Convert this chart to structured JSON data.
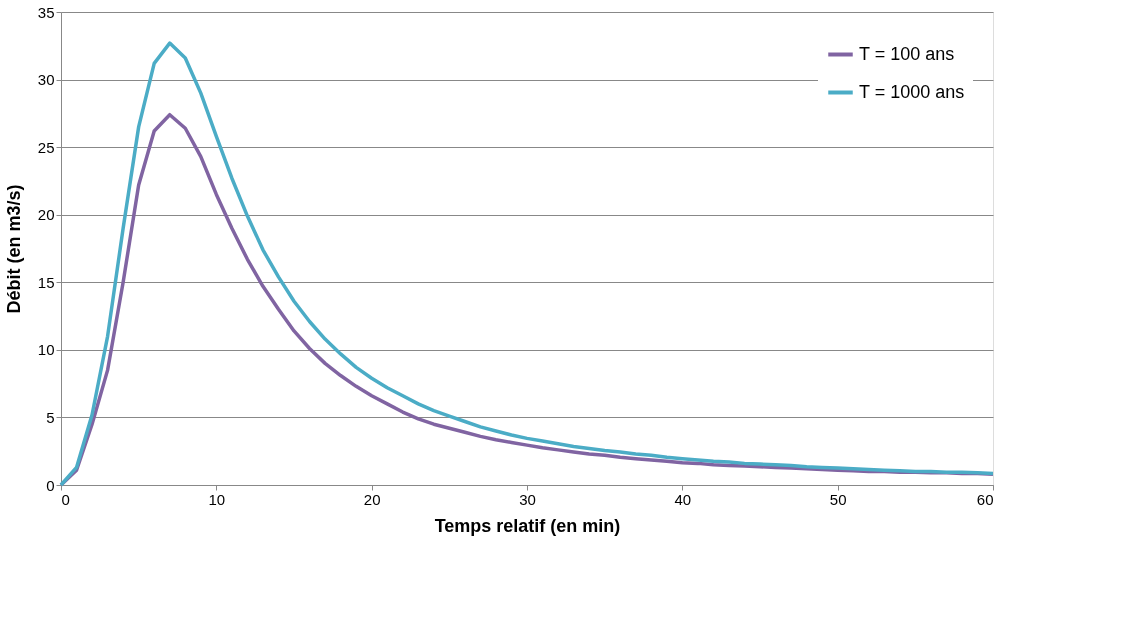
{
  "chart_data": {
    "type": "line",
    "xlabel": "Temps relatif (en min)",
    "ylabel": "Débit (en m3/s)",
    "x": [
      0,
      1,
      2,
      3,
      4,
      5,
      6,
      7,
      8,
      9,
      10,
      11,
      12,
      13,
      14,
      15,
      16,
      17,
      18,
      19,
      20,
      21,
      22,
      23,
      24,
      25,
      26,
      27,
      28,
      29,
      30,
      31,
      32,
      33,
      34,
      35,
      36,
      37,
      38,
      39,
      40,
      41,
      42,
      43,
      44,
      45,
      46,
      47,
      48,
      49,
      50,
      51,
      52,
      53,
      54,
      55,
      56,
      57,
      58,
      59,
      60
    ],
    "series": [
      {
        "name": "T = 100 ans",
        "color": "#8064a2",
        "values": [
          0,
          1.1,
          4.5,
          8.5,
          15,
          22.2,
          26.2,
          27.4,
          26.4,
          24.3,
          21.5,
          19,
          16.7,
          14.7,
          13,
          11.4,
          10.1,
          9,
          8.1,
          7.3,
          6.6,
          6,
          5.4,
          4.9,
          4.5,
          4.2,
          3.9,
          3.6,
          3.35,
          3.15,
          2.95,
          2.75,
          2.6,
          2.45,
          2.3,
          2.2,
          2.05,
          1.95,
          1.85,
          1.75,
          1.65,
          1.6,
          1.5,
          1.45,
          1.4,
          1.35,
          1.3,
          1.25,
          1.2,
          1.15,
          1.1,
          1.05,
          1.0,
          1.0,
          0.95,
          0.95,
          0.9,
          0.9,
          0.85,
          0.85,
          0.8
        ]
      },
      {
        "name": "T = 1000 ans",
        "color": "#4bacc6",
        "values": [
          0,
          1.3,
          5.2,
          11,
          19,
          26.5,
          31.2,
          32.7,
          31.6,
          29,
          25.8,
          22.7,
          19.9,
          17.4,
          15.4,
          13.6,
          12.1,
          10.8,
          9.7,
          8.7,
          7.9,
          7.2,
          6.6,
          6,
          5.5,
          5.1,
          4.7,
          4.3,
          4,
          3.7,
          3.45,
          3.25,
          3.05,
          2.85,
          2.7,
          2.55,
          2.45,
          2.3,
          2.2,
          2.05,
          1.95,
          1.85,
          1.75,
          1.7,
          1.6,
          1.55,
          1.5,
          1.45,
          1.35,
          1.3,
          1.25,
          1.2,
          1.15,
          1.1,
          1.05,
          1.0,
          1.0,
          0.95,
          0.95,
          0.9,
          0.85
        ]
      }
    ],
    "xlim": [
      0,
      60
    ],
    "xticks": [
      0,
      10,
      20,
      30,
      40,
      50,
      60
    ],
    "ylim": [
      0,
      35
    ],
    "yticks": [
      0,
      5,
      10,
      15,
      20,
      25,
      30,
      35
    ],
    "grid": "y",
    "legend": "top right",
    "marker": "none",
    "line_style": "solid"
  }
}
